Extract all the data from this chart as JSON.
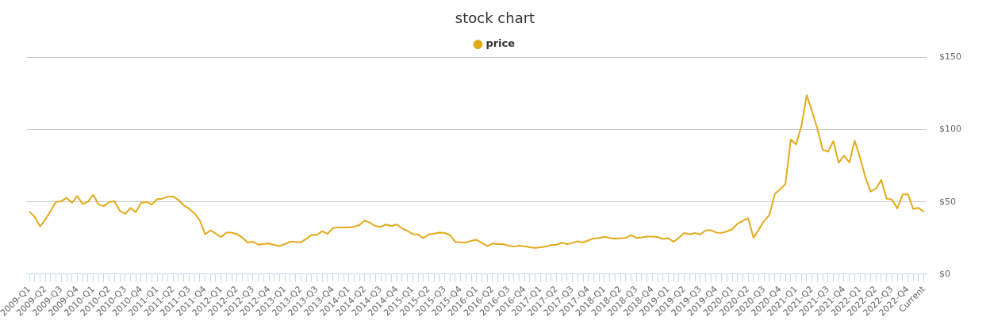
{
  "chart_data": {
    "type": "line",
    "title": "stock chart",
    "categories": [
      "2009-Q1",
      null,
      null,
      "2009-Q2",
      null,
      null,
      "2009-Q3",
      null,
      null,
      "2009-Q4",
      null,
      null,
      "2010-Q1",
      null,
      null,
      "2010-Q2",
      null,
      null,
      "2010-Q3",
      null,
      null,
      "2010-Q4",
      null,
      null,
      "2011-Q1",
      null,
      null,
      "2011-Q2",
      null,
      null,
      "2011-Q3",
      null,
      null,
      "2011-Q4",
      null,
      null,
      "2012-Q1",
      null,
      null,
      "2012-Q2",
      null,
      null,
      "2012-Q3",
      null,
      null,
      "2012-Q4",
      null,
      null,
      "2013-Q1",
      null,
      null,
      "2013-Q2",
      null,
      null,
      "2013-Q3",
      null,
      null,
      "2013-Q4",
      null,
      null,
      "2014-Q1",
      null,
      null,
      "2014-Q2",
      null,
      null,
      "2014-Q3",
      null,
      null,
      "2014-Q4",
      null,
      null,
      "2015-Q1",
      null,
      null,
      "2015-Q2",
      null,
      null,
      "2015-Q3",
      null,
      null,
      "2015-Q4",
      null,
      null,
      "2016-Q1",
      null,
      null,
      "2016-Q2",
      null,
      null,
      "2016-Q3",
      null,
      null,
      "2016-Q4",
      null,
      null,
      "2017-Q1",
      null,
      null,
      "2017-Q2",
      null,
      null,
      "2017-Q3",
      null,
      null,
      "2017-Q4",
      null,
      null,
      "2018-Q1",
      null,
      null,
      "2018-Q2",
      null,
      null,
      "2018-Q3",
      null,
      null,
      "2018-Q4",
      null,
      null,
      "2019-Q1",
      null,
      null,
      "2019-Q2",
      null,
      null,
      "2019-Q3",
      null,
      null,
      "2019-Q4",
      null,
      null,
      "2020-Q1",
      null,
      null,
      "2020-Q2",
      null,
      null,
      "2020-Q3",
      null,
      null,
      "2020-Q4",
      null,
      null,
      "2021-Q1",
      null,
      null,
      "2021-Q2",
      null,
      null,
      "2021-Q3",
      null,
      null,
      "2021-Q4",
      null,
      null,
      "2022-Q1",
      null,
      null,
      "2022-Q2",
      null,
      null,
      "2022-Q3",
      null,
      null,
      "2022-Q4",
      null,
      null,
      "Current"
    ],
    "series": [
      {
        "name": "price",
        "color": "#e3aa1a",
        "values": [
          43.3,
          39.6,
          33,
          37.7,
          43.8,
          50,
          50.4,
          52.8,
          49.4,
          54.1,
          48.5,
          50,
          54.9,
          48.1,
          47,
          50,
          50.4,
          43.8,
          41.6,
          45.7,
          42.9,
          49.3,
          50,
          48.1,
          51.9,
          52.2,
          53.7,
          53.7,
          51.3,
          47.6,
          45.2,
          42,
          37.3,
          27.6,
          30.2,
          28,
          25.6,
          28.7,
          28.7,
          27.6,
          25.2,
          21.8,
          22.4,
          20.3,
          20.9,
          21.1,
          20.2,
          19.4,
          20.7,
          22.4,
          22.2,
          22,
          24.3,
          27.2,
          27,
          29.7,
          27.8,
          31.9,
          32.3,
          32.3,
          32.3,
          32.7,
          34,
          37,
          35.5,
          33.2,
          32.7,
          34.3,
          33.2,
          34.3,
          31.7,
          29.9,
          27.6,
          27.4,
          24.8,
          27.4,
          28,
          28.7,
          28.4,
          27,
          22.2,
          22,
          21.8,
          23,
          23.7,
          21.5,
          19.4,
          21.1,
          20.7,
          20.7,
          19.6,
          19,
          19.6,
          19.2,
          18.5,
          18.1,
          18.5,
          19,
          20,
          20.3,
          21.5,
          20.7,
          21.6,
          22.6,
          21.8,
          23.3,
          24.6,
          25,
          25.8,
          25,
          24.4,
          24.8,
          25,
          26.9,
          25,
          25.4,
          25.9,
          25.9,
          25.6,
          24.3,
          24.8,
          22.4,
          25.2,
          28.4,
          27.4,
          28.4,
          27.4,
          30.2,
          30.4,
          28.7,
          28.5,
          29.5,
          31,
          34.9,
          36.9,
          38.6,
          25.2,
          30.8,
          36.8,
          41,
          55.5,
          58.7,
          62.4,
          93.2,
          89.8,
          102.5,
          123.9,
          112.7,
          100.6,
          86.1,
          84.8,
          92,
          77.1,
          82,
          77.3,
          92.4,
          81,
          67.1,
          57.2,
          59.3,
          65.2,
          52.2,
          51.6,
          45.5,
          55,
          55.3,
          45.1,
          45.8,
          43.2
        ]
      }
    ],
    "ylim": [
      0,
      150
    ],
    "yticks": [
      {
        "value": 0,
        "label": "$0"
      },
      {
        "value": 50,
        "label": "$50"
      },
      {
        "value": 100,
        "label": "$100"
      },
      {
        "value": 150,
        "label": "$150"
      }
    ],
    "grid": "y",
    "legend": "top",
    "marker": "none",
    "line_style": "solid"
  }
}
